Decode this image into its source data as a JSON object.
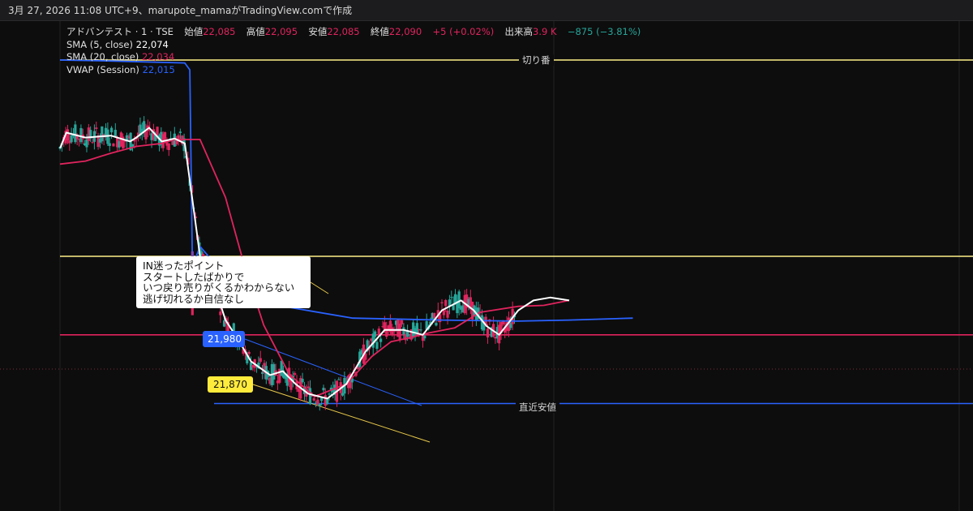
{
  "header": {
    "text": "3月 27, 2026 11:08 UTC+9、marupote_mamaがTradingView.comで作成"
  },
  "legend": {
    "symbol": "アドバンテスト · 1 · TSE",
    "open_label": "始値",
    "open": "22,085",
    "high_label": "高値",
    "high": "22,095",
    "low_label": "安値",
    "low": "22,085",
    "close_label": "終値",
    "close": "22,090",
    "change": "+5 (+0.02%)",
    "volume_label": "出来高",
    "volume": "3.9 K",
    "volume_change": "−875 (−3.81%)",
    "sma5_label": "SMA (5, close)",
    "sma5_value": "22,074",
    "sma20_label": "SMA (20, close)",
    "sma20_value": "22,034",
    "vwap_label": "VWAP (Session)",
    "vwap_value": "22,015"
  },
  "annotations": {
    "note_lines": [
      "IN迷ったポイント",
      "スタートしたばかりで",
      "いつ戻り売りがくるかわからない",
      "逃げ切れるか自信なし"
    ],
    "tag_blue": "21,980",
    "tag_yellow": "21,870",
    "line_label_round": "切り番",
    "line_label_low": "直近安値"
  },
  "colors": {
    "up": "#26a69a",
    "down": "#e0245e",
    "sma5": "#ffffff",
    "sma20": "#e0245e",
    "vwap": "#2962ff",
    "yellow_line": "#fff08a",
    "pink_line": "#e0245e",
    "blue_line": "#2962ff"
  },
  "chart_data": {
    "type": "line",
    "series": [
      {
        "name": "VWAP (Session)",
        "color": "#2962ff",
        "points": [
          [
            0,
            22200
          ],
          [
            40,
            22199
          ],
          [
            98,
            22197
          ],
          [
            102,
            22190
          ],
          [
            104,
            21990
          ],
          [
            110,
            22010
          ],
          [
            140,
            21965
          ],
          [
            180,
            21948
          ],
          [
            230,
            21937
          ],
          [
            300,
            21935
          ],
          [
            360,
            21934
          ],
          [
            400,
            21935
          ],
          [
            450,
            21937
          ]
        ]
      },
      {
        "name": "SMA (20, close)",
        "color": "#e0245e",
        "points": [
          [
            0,
            22094
          ],
          [
            20,
            22097
          ],
          [
            40,
            22105
          ],
          [
            60,
            22112
          ],
          [
            80,
            22115
          ],
          [
            90,
            22119
          ],
          [
            110,
            22119
          ],
          [
            130,
            22060
          ],
          [
            145,
            21990
          ],
          [
            160,
            21930
          ],
          [
            180,
            21880
          ],
          [
            200,
            21857
          ],
          [
            225,
            21870
          ],
          [
            245,
            21898
          ],
          [
            260,
            21913
          ],
          [
            275,
            21917
          ],
          [
            290,
            21922
          ],
          [
            310,
            21927
          ],
          [
            330,
            21943
          ],
          [
            360,
            21949
          ],
          [
            380,
            21950
          ],
          [
            400,
            21955
          ]
        ]
      },
      {
        "name": "SMA (5, close)",
        "color": "#ffffff",
        "points": [
          [
            0,
            22110
          ],
          [
            5,
            22126
          ],
          [
            20,
            22121
          ],
          [
            40,
            22123
          ],
          [
            55,
            22117
          ],
          [
            60,
            22121
          ],
          [
            70,
            22131
          ],
          [
            80,
            22117
          ],
          [
            90,
            22120
          ],
          [
            98,
            22115
          ],
          [
            110,
            22000
          ],
          [
            120,
            21975
          ],
          [
            130,
            21935
          ],
          [
            140,
            21915
          ],
          [
            150,
            21893
          ],
          [
            165,
            21879
          ],
          [
            175,
            21883
          ],
          [
            185,
            21870
          ],
          [
            195,
            21860
          ],
          [
            210,
            21855
          ],
          [
            225,
            21870
          ],
          [
            240,
            21903
          ],
          [
            255,
            21925
          ],
          [
            270,
            21925
          ],
          [
            285,
            21920
          ],
          [
            300,
            21945
          ],
          [
            315,
            21955
          ],
          [
            325,
            21945
          ],
          [
            335,
            21929
          ],
          [
            345,
            21920
          ],
          [
            360,
            21945
          ],
          [
            372,
            21955
          ],
          [
            385,
            21958
          ],
          [
            400,
            21955
          ]
        ]
      }
    ],
    "horizontal_lines": [
      {
        "label": "切り番",
        "value": 22200,
        "color": "#fff08a"
      },
      {
        "label": "",
        "value": 22000,
        "color": "#fff08a"
      },
      {
        "label": "直近安値",
        "value": 21920,
        "color": "#e0245e"
      },
      {
        "label": "",
        "value": 21850,
        "color": "#2962ff"
      }
    ]
  }
}
